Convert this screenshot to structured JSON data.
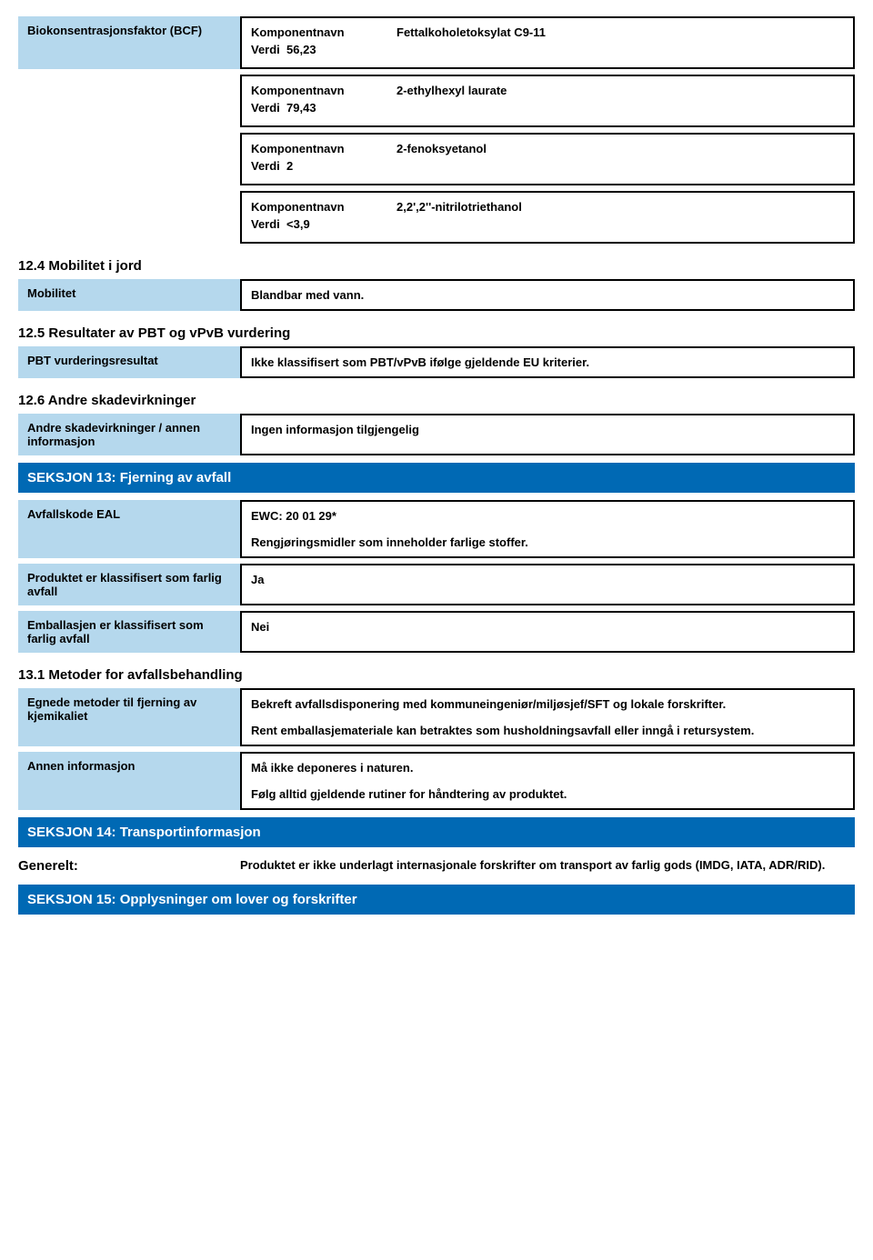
{
  "colors": {
    "label_bg": "#b5d8ed",
    "section_bg": "#0069b4",
    "section_fg": "#ffffff",
    "border": "#000000",
    "text": "#000000",
    "page_bg": "#ffffff"
  },
  "bcf": {
    "label": "Biokonsentrasjonsfaktor (BCF)",
    "komponentnavn_label": "Komponentnavn",
    "verdi_label": "Verdi",
    "entries": [
      {
        "name": "Fettalkoholetoksylat C9-11",
        "value": "56,23"
      },
      {
        "name": "2-ethylhexyl laurate",
        "value": "79,43"
      },
      {
        "name": "2-fenoksyetanol",
        "value": "2"
      },
      {
        "name": "2,2',2''-nitrilotriethanol",
        "value": "<3,9"
      }
    ]
  },
  "sec12_4": {
    "heading": "12.4 Mobilitet i jord",
    "label": "Mobilitet",
    "value": "Blandbar med vann."
  },
  "sec12_5": {
    "heading": "12.5 Resultater av PBT og vPvB vurdering",
    "label": "PBT vurderingsresultat",
    "value": "Ikke klassifisert som PBT/vPvB ifølge gjeldende EU kriterier."
  },
  "sec12_6": {
    "heading": "12.6 Andre skadevirkninger",
    "label": "Andre skadevirkninger / annen informasjon",
    "value": "Ingen informasjon tilgjengelig"
  },
  "sec13": {
    "header": "SEKSJON 13: Fjerning av avfall",
    "eal_label": "Avfallskode EAL",
    "eal_code": "EWC: 20 01 29*",
    "eal_desc": "Rengjøringsmidler som inneholder farlige stoffer.",
    "product_class_label": "Produktet er klassifisert som farlig avfall",
    "product_class_value": "Ja",
    "packaging_class_label": "Emballasjen er klassifisert som farlig avfall",
    "packaging_class_value": "Nei",
    "sub13_1": "13.1 Metoder for avfallsbehandling",
    "methods_label": "Egnede metoder til fjerning av kjemikaliet",
    "methods_p1": "Bekreft avfallsdisponering med kommuneingeniør/miljøsjef/SFT og lokale forskrifter.",
    "methods_p2": "Rent emballasjemateriale kan betraktes som husholdningsavfall eller inngå i retursystem.",
    "other_label": "Annen informasjon",
    "other_p1": "Må ikke deponeres i naturen.",
    "other_p2": "Følg alltid gjeldende rutiner for håndtering av produktet."
  },
  "sec14": {
    "header": "SEKSJON 14: Transportinformasjon",
    "generelt_label": "Generelt:",
    "generelt_value": "Produktet er ikke underlagt internasjonale forskrifter om transport av farlig gods (IMDG, IATA, ADR/RID)."
  },
  "sec15": {
    "header": "SEKSJON 15: Opplysninger om lover og forskrifter"
  }
}
